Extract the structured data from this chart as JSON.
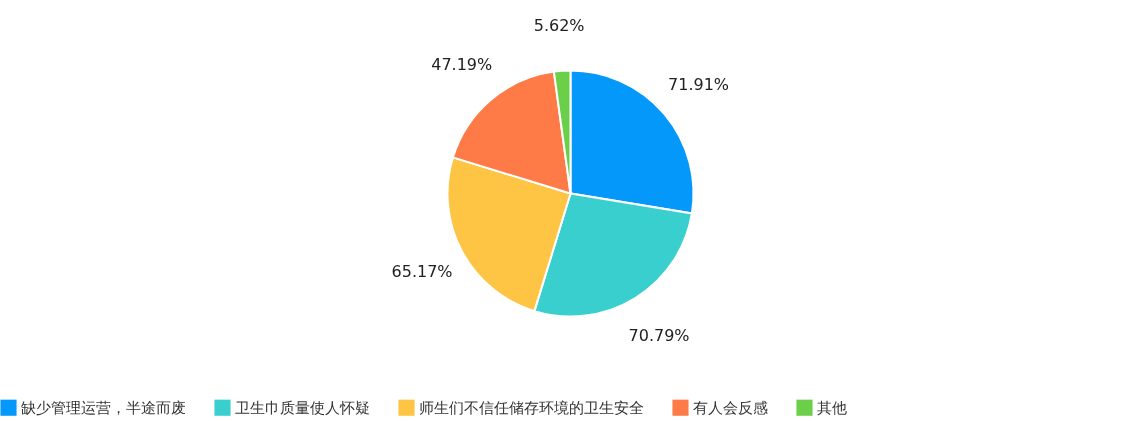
{
  "chart_data": {
    "type": "pie",
    "categories": [
      "缺少管理运营，半途而废",
      "卫生巾质量使人怀疑",
      "师生们不信任储存环境的卫生安全",
      "有人会反感",
      "其他"
    ],
    "values": [
      71.91,
      70.79,
      65.17,
      47.19,
      5.62
    ],
    "value_labels": [
      "71.91%",
      "70.79%",
      "65.17%",
      "47.19%",
      "5.62%"
    ],
    "colors": [
      "#0398fa",
      "#3acfcf",
      "#fdc543",
      "#fe7b48",
      "#6ccf4a"
    ],
    "legend": "bottom"
  }
}
